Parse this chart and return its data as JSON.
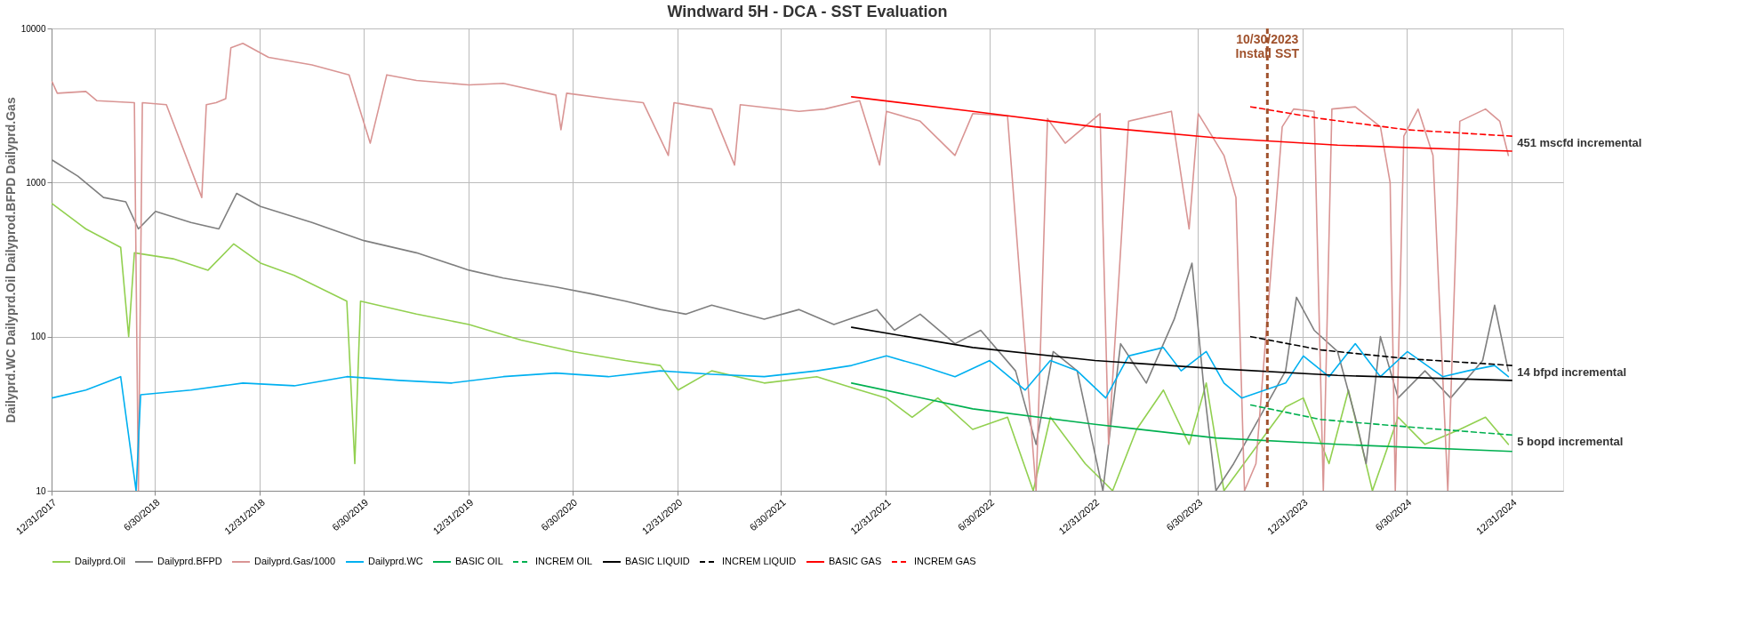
{
  "chart_data": {
    "type": "line",
    "title": "Windward 5H - DCA - SST Evaluation",
    "ylabel": "Dailyprd.WC   Dailyprd.Oil   Dailyprod.BFPD   Dailyprd.Gas",
    "log": "y",
    "ylim": [
      10,
      10000
    ],
    "yticks": [
      10,
      100,
      1000,
      10000
    ],
    "xlim": [
      "2017-12-31",
      "2025-03-31"
    ],
    "xticks": [
      {
        "value": "2017-12-31",
        "label": "12/31/2017"
      },
      {
        "value": "2018-06-30",
        "label": "6/30/2018"
      },
      {
        "value": "2018-12-31",
        "label": "12/31/2018"
      },
      {
        "value": "2019-06-30",
        "label": "6/30/2019"
      },
      {
        "value": "2019-12-31",
        "label": "12/31/2019"
      },
      {
        "value": "2020-06-30",
        "label": "6/30/2020"
      },
      {
        "value": "2020-12-31",
        "label": "12/31/2020"
      },
      {
        "value": "2021-06-30",
        "label": "6/30/2021"
      },
      {
        "value": "2021-12-31",
        "label": "12/31/2021"
      },
      {
        "value": "2022-06-30",
        "label": "6/30/2022"
      },
      {
        "value": "2022-12-31",
        "label": "12/31/2022"
      },
      {
        "value": "2023-06-30",
        "label": "6/30/2023"
      },
      {
        "value": "2023-12-31",
        "label": "12/31/2023"
      },
      {
        "value": "2024-06-30",
        "label": "6/30/2024"
      },
      {
        "value": "2024-12-31",
        "label": "12/31/2024"
      }
    ],
    "grid": true,
    "legend": "bottom",
    "series": [
      {
        "name": "Dailyprd.Oil",
        "color": "#92d050",
        "line_style": "solid",
        "x": [
          "2018-01-01",
          "2018-03-01",
          "2018-05-01",
          "2018-05-15",
          "2018-05-25",
          "2018-08-01",
          "2018-10-01",
          "2018-11-15",
          "2019-01-01",
          "2019-03-01",
          "2019-06-01",
          "2019-06-15",
          "2019-06-25",
          "2019-10-01",
          "2020-01-01",
          "2020-04-01",
          "2020-07-01",
          "2020-10-01",
          "2020-12-01",
          "2021-01-01",
          "2021-03-01",
          "2021-06-01",
          "2021-09-01",
          "2021-11-15",
          "2022-01-01",
          "2022-02-15",
          "2022-04-01",
          "2022-06-01",
          "2022-08-01",
          "2022-09-15",
          "2022-10-15",
          "2022-12-15",
          "2023-02-01",
          "2023-03-15",
          "2023-05-01",
          "2023-06-15",
          "2023-07-15",
          "2023-08-15",
          "2023-12-01",
          "2024-01-01",
          "2024-02-15",
          "2024-03-20",
          "2024-05-01",
          "2024-06-15",
          "2024-08-01",
          "2024-10-01",
          "2024-11-15",
          "2024-12-25"
        ],
        "values": [
          730,
          500,
          380,
          100,
          350,
          320,
          270,
          400,
          300,
          250,
          170,
          15,
          170,
          140,
          120,
          95,
          80,
          70,
          65,
          45,
          60,
          50,
          55,
          45,
          40,
          30,
          40,
          25,
          30,
          10,
          30,
          15,
          10,
          25,
          45,
          20,
          50,
          10,
          35,
          40,
          15,
          45,
          10,
          30,
          20,
          25,
          30,
          20
        ]
      },
      {
        "name": "Dailyprd.BFPD",
        "color": "#7f7f7f",
        "line_style": "solid",
        "x": [
          "2018-01-01",
          "2018-02-15",
          "2018-04-01",
          "2018-05-10",
          "2018-06-01",
          "2018-07-01",
          "2018-09-01",
          "2018-10-20",
          "2018-11-20",
          "2019-01-01",
          "2019-04-01",
          "2019-07-01",
          "2019-10-01",
          "2020-01-01",
          "2020-03-01",
          "2020-06-01",
          "2020-08-01",
          "2020-10-01",
          "2020-12-01",
          "2021-01-15",
          "2021-03-01",
          "2021-06-01",
          "2021-08-01",
          "2021-10-01",
          "2021-12-15",
          "2022-01-15",
          "2022-03-01",
          "2022-05-01",
          "2022-06-15",
          "2022-08-15",
          "2022-09-20",
          "2022-10-20",
          "2022-12-01",
          "2023-01-15",
          "2023-02-15",
          "2023-04-01",
          "2023-05-20",
          "2023-06-20",
          "2023-07-10",
          "2023-08-01",
          "2023-09-01",
          "2023-12-01",
          "2023-12-20",
          "2024-01-20",
          "2024-03-01",
          "2024-04-01",
          "2024-04-20",
          "2024-05-15",
          "2024-06-15",
          "2024-08-01",
          "2024-09-15",
          "2024-11-10",
          "2024-12-01",
          "2024-12-25"
        ],
        "values": [
          1400,
          1100,
          800,
          750,
          500,
          650,
          550,
          500,
          850,
          700,
          550,
          420,
          350,
          270,
          240,
          210,
          190,
          170,
          150,
          140,
          160,
          130,
          150,
          120,
          150,
          110,
          140,
          90,
          110,
          60,
          20,
          80,
          60,
          10,
          90,
          50,
          130,
          300,
          50,
          10,
          15,
          60,
          180,
          110,
          80,
          30,
          15,
          100,
          40,
          60,
          40,
          70,
          160,
          60
        ]
      },
      {
        "name": "Dailyprd.Gas/1000",
        "color": "#d99594",
        "line_style": "solid",
        "x": [
          "2018-01-01",
          "2018-01-10",
          "2018-03-01",
          "2018-03-20",
          "2018-05-25",
          "2018-06-01",
          "2018-06-08",
          "2018-07-20",
          "2018-09-20",
          "2018-09-28",
          "2018-10-15",
          "2018-11-01",
          "2018-11-10",
          "2018-12-01",
          "2019-01-15",
          "2019-04-01",
          "2019-06-05",
          "2019-07-12",
          "2019-08-10",
          "2019-10-01",
          "2020-01-01",
          "2020-03-01",
          "2020-06-01",
          "2020-06-10",
          "2020-06-20",
          "2020-09-01",
          "2020-11-01",
          "2020-12-15",
          "2020-12-25",
          "2021-03-01",
          "2021-04-10",
          "2021-04-20",
          "2021-08-01",
          "2021-09-15",
          "2021-11-15",
          "2021-12-20",
          "2022-01-01",
          "2022-03-01",
          "2022-05-01",
          "2022-06-01",
          "2022-08-01",
          "2022-09-20",
          "2022-10-10",
          "2022-11-10",
          "2023-01-10",
          "2023-01-25",
          "2023-03-01",
          "2023-05-15",
          "2023-06-15",
          "2023-07-01",
          "2023-08-15",
          "2023-09-05",
          "2023-09-20",
          "2023-10-10",
          "2023-11-25",
          "2023-12-15",
          "2024-01-20",
          "2024-02-05",
          "2024-02-20",
          "2024-04-01",
          "2024-05-15",
          "2024-06-01",
          "2024-06-10",
          "2024-06-25",
          "2024-07-20",
          "2024-08-15",
          "2024-09-10",
          "2024-10-01",
          "2024-11-15",
          "2024-12-10",
          "2024-12-25"
        ],
        "values": [
          4500,
          3800,
          3900,
          3400,
          3300,
          10,
          3300,
          3200,
          800,
          3200,
          3300,
          3500,
          7500,
          8000,
          6500,
          5800,
          5000,
          1800,
          5000,
          4600,
          4300,
          4400,
          3700,
          2200,
          3800,
          3500,
          3300,
          1500,
          3300,
          3000,
          1300,
          3200,
          2900,
          3000,
          3400,
          1300,
          2900,
          2500,
          1500,
          2800,
          2700,
          10,
          2600,
          1800,
          2800,
          20,
          2500,
          2900,
          500,
          2800,
          1500,
          800,
          10,
          15,
          2300,
          3000,
          2900,
          10,
          3000,
          3100,
          2300,
          1000,
          10,
          2000,
          3000,
          1500,
          10,
          2500,
          3000,
          2500,
          1500
        ]
      },
      {
        "name": "Dailyprd.WC",
        "color": "#00b0f0",
        "line_style": "solid",
        "x": [
          "2018-01-01",
          "2018-03-01",
          "2018-05-01",
          "2018-05-28",
          "2018-06-05",
          "2018-09-01",
          "2018-12-01",
          "2019-03-01",
          "2019-06-01",
          "2019-09-01",
          "2019-12-01",
          "2020-03-01",
          "2020-06-01",
          "2020-09-01",
          "2020-12-01",
          "2021-03-01",
          "2021-06-01",
          "2021-09-01",
          "2021-11-01",
          "2022-01-01",
          "2022-03-01",
          "2022-05-01",
          "2022-07-01",
          "2022-09-01",
          "2022-10-15",
          "2022-12-01",
          "2023-01-20",
          "2023-03-01",
          "2023-05-01",
          "2023-06-01",
          "2023-07-15",
          "2023-08-15",
          "2023-09-15",
          "2023-12-01",
          "2024-01-01",
          "2024-02-15",
          "2024-04-01",
          "2024-05-15",
          "2024-07-01",
          "2024-09-01",
          "2024-10-15",
          "2024-12-01",
          "2024-12-25"
        ],
        "values": [
          40,
          45,
          55,
          10,
          42,
          45,
          50,
          48,
          55,
          52,
          50,
          55,
          58,
          55,
          60,
          57,
          55,
          60,
          65,
          75,
          65,
          55,
          70,
          45,
          70,
          60,
          40,
          75,
          85,
          60,
          80,
          50,
          40,
          50,
          75,
          55,
          90,
          55,
          80,
          55,
          60,
          65,
          55
        ]
      },
      {
        "name": "BASIC OIL",
        "color": "#00b050",
        "line_style": "solid",
        "x": [
          "2021-11-01",
          "2022-06-01",
          "2023-01-01",
          "2023-08-01",
          "2024-03-01",
          "2024-12-31"
        ],
        "values": [
          50,
          34,
          27,
          22,
          20,
          18
        ]
      },
      {
        "name": "INCREM OIL",
        "color": "#00b050",
        "line_style": "dashed",
        "x": [
          "2023-10-01",
          "2024-02-01",
          "2024-07-01",
          "2024-12-31"
        ],
        "values": [
          36,
          29,
          26,
          23
        ]
      },
      {
        "name": "BASIC LIQUID",
        "color": "#000000",
        "line_style": "solid",
        "x": [
          "2021-11-01",
          "2022-06-01",
          "2023-01-01",
          "2023-08-01",
          "2024-03-01",
          "2024-12-31"
        ],
        "values": [
          115,
          85,
          70,
          62,
          56,
          52
        ]
      },
      {
        "name": "INCREM LIQUID",
        "color": "#000000",
        "line_style": "dashed",
        "x": [
          "2023-10-01",
          "2024-02-01",
          "2024-07-01",
          "2024-12-31"
        ],
        "values": [
          100,
          82,
          72,
          65
        ]
      },
      {
        "name": "BASIC GAS",
        "color": "#ff0000",
        "line_style": "solid",
        "x": [
          "2021-11-01",
          "2022-06-01",
          "2023-01-01",
          "2023-08-01",
          "2024-03-01",
          "2024-12-31"
        ],
        "values": [
          3600,
          2900,
          2300,
          1950,
          1750,
          1600
        ]
      },
      {
        "name": "INCREM GAS",
        "color": "#ff0000",
        "line_style": "dashed",
        "x": [
          "2023-10-01",
          "2024-02-01",
          "2024-07-01",
          "2024-12-31"
        ],
        "values": [
          3100,
          2600,
          2200,
          2000
        ]
      }
    ],
    "ref_lines": [
      {
        "axis": "x",
        "value": "2023-10-30",
        "label": "10/30/2023\nInstall SST",
        "color": "#a0522d",
        "line_style": "dashed"
      }
    ],
    "annotations": [
      {
        "text": "451 mscfd incremental",
        "x": "2024-12-31",
        "y": 2000
      },
      {
        "text": "14 bfpd incremental",
        "x": "2024-12-31",
        "y": 65
      },
      {
        "text": "5 bopd incremental",
        "x": "2024-12-31",
        "y": 23
      }
    ]
  }
}
